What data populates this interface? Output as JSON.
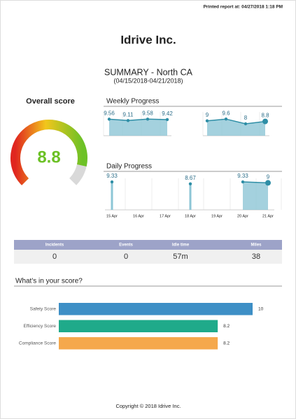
{
  "printed": "Printed report at: 04/27/2018 1:18 PM",
  "title": "Idrive Inc.",
  "summary": {
    "title": "SUMMARY - North CA",
    "range": "(04/15/2018-04/21/2018)"
  },
  "overall": {
    "label": "Overall score",
    "value": 8.8,
    "range": [
      0,
      10
    ]
  },
  "weekly": {
    "title": "Weekly Progress",
    "ylim": [
      4,
      12
    ],
    "series": [
      {
        "values": [
          9.56,
          9.11,
          9.58,
          9.42
        ]
      },
      {
        "values": [
          9,
          9.6,
          8,
          8.8
        ]
      }
    ]
  },
  "daily": {
    "title": "Daily Progress",
    "ylim": [
      0,
      10.5
    ],
    "categories": [
      "15 Apr",
      "16 Apr",
      "17 Apr",
      "18 Apr",
      "19 Apr",
      "20 Apr",
      "21 Apr"
    ],
    "values": [
      9.33,
      null,
      null,
      8.67,
      null,
      9.33,
      9
    ]
  },
  "stats": {
    "headers": [
      "Incidents",
      "Events",
      "Idle time",
      "Miles"
    ],
    "values": [
      0,
      0,
      "57m",
      38
    ]
  },
  "scores": {
    "title": "What's in your score?",
    "xlim": [
      0,
      10
    ],
    "items": [
      {
        "label": "Safety Score",
        "value": 10,
        "color": "#3d8fc6"
      },
      {
        "label": "Efficiency Score",
        "value": 8.2,
        "color": "#1faa8a"
      },
      {
        "label": "Compliance Score",
        "value": 8.2,
        "color": "#f5a84c"
      }
    ]
  },
  "footer": "Copyright © 2018 Idrive Inc."
}
